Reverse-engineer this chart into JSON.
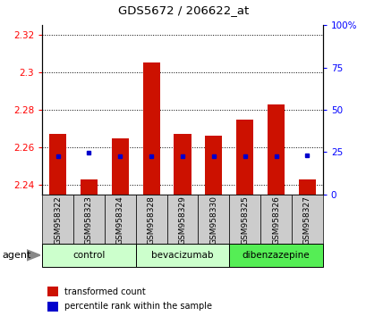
{
  "title": "GDS5672 / 206622_at",
  "samples": [
    "GSM958322",
    "GSM958323",
    "GSM958324",
    "GSM958328",
    "GSM958329",
    "GSM958330",
    "GSM958325",
    "GSM958326",
    "GSM958327"
  ],
  "transformed_counts": [
    2.267,
    2.243,
    2.265,
    2.305,
    2.267,
    2.266,
    2.275,
    2.283,
    2.243
  ],
  "percentile_yvals": [
    2.2555,
    2.257,
    2.2555,
    2.2555,
    2.2555,
    2.2555,
    2.2555,
    2.2555,
    2.2558
  ],
  "ylim_min": 2.235,
  "ylim_max": 2.325,
  "yticks": [
    2.24,
    2.26,
    2.28,
    2.3,
    2.32
  ],
  "ytick_labels": [
    "2.24",
    "2.26",
    "2.28",
    "2.3",
    "2.32"
  ],
  "right_yticks_pct": [
    0,
    25,
    50,
    75,
    100
  ],
  "right_ytick_labels": [
    "0",
    "25",
    "50",
    "75",
    "100%"
  ],
  "groups": [
    {
      "name": "control",
      "indices": [
        0,
        1,
        2
      ],
      "color": "#ccffcc"
    },
    {
      "name": "bevacizumab",
      "indices": [
        3,
        4,
        5
      ],
      "color": "#ccffcc"
    },
    {
      "name": "dibenzazepine",
      "indices": [
        6,
        7,
        8
      ],
      "color": "#55ee55"
    }
  ],
  "bar_color": "#cc1100",
  "dot_color": "#0000cc",
  "agent_label": "agent",
  "legend_bar_label": "transformed count",
  "legend_dot_label": "percentile rank within the sample",
  "bar_width": 0.55,
  "tick_bg_color": "#cccccc"
}
